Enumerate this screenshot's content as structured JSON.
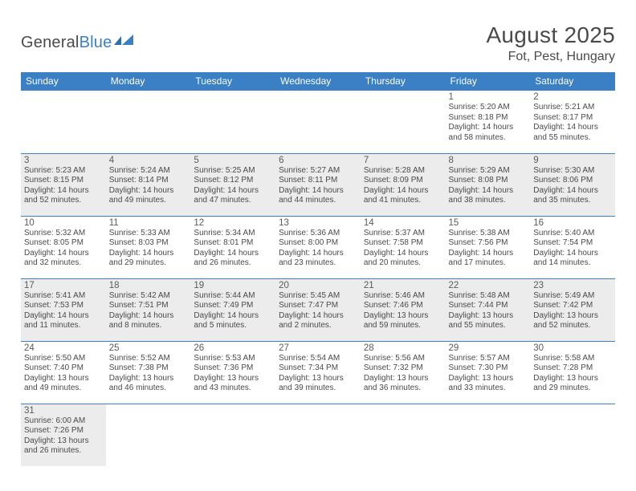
{
  "brand": {
    "name_a": "General",
    "name_b": "Blue"
  },
  "title": "August 2025",
  "location": "Fot, Pest, Hungary",
  "colors": {
    "header_bg": "#3b7fc4",
    "header_text": "#ffffff",
    "alt_row_bg": "#ececec",
    "border": "#3b7fc4",
    "text": "#4a4a4a"
  },
  "weekdays": [
    "Sunday",
    "Monday",
    "Tuesday",
    "Wednesday",
    "Thursday",
    "Friday",
    "Saturday"
  ],
  "first_weekday_index": 5,
  "days": [
    {
      "n": 1,
      "sunrise": "5:20 AM",
      "sunset": "8:18 PM",
      "daylight": "14 hours and 58 minutes."
    },
    {
      "n": 2,
      "sunrise": "5:21 AM",
      "sunset": "8:17 PM",
      "daylight": "14 hours and 55 minutes."
    },
    {
      "n": 3,
      "sunrise": "5:23 AM",
      "sunset": "8:15 PM",
      "daylight": "14 hours and 52 minutes."
    },
    {
      "n": 4,
      "sunrise": "5:24 AM",
      "sunset": "8:14 PM",
      "daylight": "14 hours and 49 minutes."
    },
    {
      "n": 5,
      "sunrise": "5:25 AM",
      "sunset": "8:12 PM",
      "daylight": "14 hours and 47 minutes."
    },
    {
      "n": 6,
      "sunrise": "5:27 AM",
      "sunset": "8:11 PM",
      "daylight": "14 hours and 44 minutes."
    },
    {
      "n": 7,
      "sunrise": "5:28 AM",
      "sunset": "8:09 PM",
      "daylight": "14 hours and 41 minutes."
    },
    {
      "n": 8,
      "sunrise": "5:29 AM",
      "sunset": "8:08 PM",
      "daylight": "14 hours and 38 minutes."
    },
    {
      "n": 9,
      "sunrise": "5:30 AM",
      "sunset": "8:06 PM",
      "daylight": "14 hours and 35 minutes."
    },
    {
      "n": 10,
      "sunrise": "5:32 AM",
      "sunset": "8:05 PM",
      "daylight": "14 hours and 32 minutes."
    },
    {
      "n": 11,
      "sunrise": "5:33 AM",
      "sunset": "8:03 PM",
      "daylight": "14 hours and 29 minutes."
    },
    {
      "n": 12,
      "sunrise": "5:34 AM",
      "sunset": "8:01 PM",
      "daylight": "14 hours and 26 minutes."
    },
    {
      "n": 13,
      "sunrise": "5:36 AM",
      "sunset": "8:00 PM",
      "daylight": "14 hours and 23 minutes."
    },
    {
      "n": 14,
      "sunrise": "5:37 AM",
      "sunset": "7:58 PM",
      "daylight": "14 hours and 20 minutes."
    },
    {
      "n": 15,
      "sunrise": "5:38 AM",
      "sunset": "7:56 PM",
      "daylight": "14 hours and 17 minutes."
    },
    {
      "n": 16,
      "sunrise": "5:40 AM",
      "sunset": "7:54 PM",
      "daylight": "14 hours and 14 minutes."
    },
    {
      "n": 17,
      "sunrise": "5:41 AM",
      "sunset": "7:53 PM",
      "daylight": "14 hours and 11 minutes."
    },
    {
      "n": 18,
      "sunrise": "5:42 AM",
      "sunset": "7:51 PM",
      "daylight": "14 hours and 8 minutes."
    },
    {
      "n": 19,
      "sunrise": "5:44 AM",
      "sunset": "7:49 PM",
      "daylight": "14 hours and 5 minutes."
    },
    {
      "n": 20,
      "sunrise": "5:45 AM",
      "sunset": "7:47 PM",
      "daylight": "14 hours and 2 minutes."
    },
    {
      "n": 21,
      "sunrise": "5:46 AM",
      "sunset": "7:46 PM",
      "daylight": "13 hours and 59 minutes."
    },
    {
      "n": 22,
      "sunrise": "5:48 AM",
      "sunset": "7:44 PM",
      "daylight": "13 hours and 55 minutes."
    },
    {
      "n": 23,
      "sunrise": "5:49 AM",
      "sunset": "7:42 PM",
      "daylight": "13 hours and 52 minutes."
    },
    {
      "n": 24,
      "sunrise": "5:50 AM",
      "sunset": "7:40 PM",
      "daylight": "13 hours and 49 minutes."
    },
    {
      "n": 25,
      "sunrise": "5:52 AM",
      "sunset": "7:38 PM",
      "daylight": "13 hours and 46 minutes."
    },
    {
      "n": 26,
      "sunrise": "5:53 AM",
      "sunset": "7:36 PM",
      "daylight": "13 hours and 43 minutes."
    },
    {
      "n": 27,
      "sunrise": "5:54 AM",
      "sunset": "7:34 PM",
      "daylight": "13 hours and 39 minutes."
    },
    {
      "n": 28,
      "sunrise": "5:56 AM",
      "sunset": "7:32 PM",
      "daylight": "13 hours and 36 minutes."
    },
    {
      "n": 29,
      "sunrise": "5:57 AM",
      "sunset": "7:30 PM",
      "daylight": "13 hours and 33 minutes."
    },
    {
      "n": 30,
      "sunrise": "5:58 AM",
      "sunset": "7:28 PM",
      "daylight": "13 hours and 29 minutes."
    },
    {
      "n": 31,
      "sunrise": "6:00 AM",
      "sunset": "7:26 PM",
      "daylight": "13 hours and 26 minutes."
    }
  ],
  "labels": {
    "sunrise": "Sunrise:",
    "sunset": "Sunset:",
    "daylight": "Daylight:"
  }
}
